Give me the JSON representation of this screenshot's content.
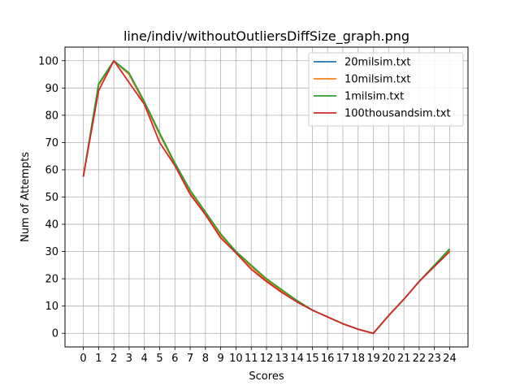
{
  "chart_data": {
    "type": "line",
    "title": "line/indiv/withoutOutliersDiffSize_graph.png",
    "xlabel": "Scores",
    "ylabel": "Num of Attempts",
    "x": [
      0,
      1,
      2,
      3,
      4,
      5,
      6,
      7,
      8,
      9,
      10,
      11,
      12,
      13,
      14,
      15,
      16,
      17,
      18,
      19,
      20,
      21,
      22,
      23,
      24
    ],
    "xticks": [
      "0",
      "1",
      "2",
      "3",
      "4",
      "5",
      "6",
      "7",
      "8",
      "9",
      "10",
      "11",
      "12",
      "13",
      "14",
      "15",
      "16",
      "17",
      "18",
      "19",
      "20",
      "21",
      "22",
      "23",
      "24"
    ],
    "yticks": [
      "0",
      "10",
      "20",
      "30",
      "40",
      "50",
      "60",
      "70",
      "80",
      "90",
      "100"
    ],
    "xlim": [
      -1.2,
      25.2
    ],
    "ylim": [
      -5,
      105
    ],
    "grid": true,
    "legend_position": "upper right",
    "series": [
      {
        "name": "20milsim.txt",
        "color": "#1f77b4",
        "values": [
          57.5,
          91,
          100,
          95,
          84.5,
          73,
          62,
          52,
          44,
          36,
          30,
          24.5,
          19.5,
          15.5,
          12,
          8.5,
          6,
          3.5,
          1.5,
          0,
          6.5,
          12.5,
          19,
          25,
          30.5
        ]
      },
      {
        "name": "10milsim.txt",
        "color": "#ff7f0e",
        "values": [
          57.5,
          91,
          100,
          95,
          84.5,
          73,
          62,
          52,
          44,
          36,
          30,
          24.5,
          19.5,
          15.5,
          12,
          8.5,
          6,
          3.5,
          1.5,
          0,
          6.5,
          12.5,
          19,
          25,
          30.5
        ]
      },
      {
        "name": "1milsim.txt",
        "color": "#2ca02c",
        "values": [
          57.5,
          91.5,
          100,
          95.5,
          85,
          73.5,
          62.5,
          52.5,
          44.5,
          36.5,
          30,
          25,
          20,
          16,
          12,
          8.5,
          6,
          3.5,
          1.5,
          0,
          6.5,
          12.5,
          19,
          25,
          31
        ]
      },
      {
        "name": "100thousandsim.txt",
        "color": "#d62728",
        "values": [
          57.5,
          89,
          100,
          92,
          84,
          70,
          61.5,
          51,
          43.5,
          35,
          29.5,
          23.5,
          19,
          15,
          11.5,
          8.5,
          6,
          3.5,
          1.5,
          0,
          6.5,
          12.5,
          19,
          24.5,
          30
        ]
      }
    ]
  }
}
